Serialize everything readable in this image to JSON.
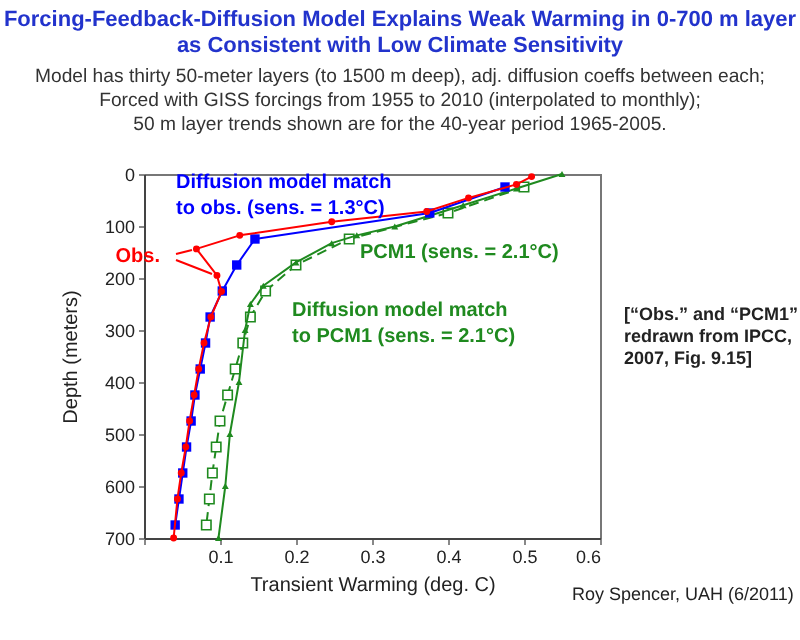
{
  "chart_data": {
    "type": "line",
    "title": "Forcing-Feedback-Diffusion Model Explains Weak Warming in 0-700 m layer\nas Consistent with Low Climate Sensitivity",
    "subtitle": "Model has thirty 50-meter layers (to 1500 m deep), adj. diffusion coeffs between each;\nForced with GISS forcings from 1955 to 2010 (interpolated to monthly);\n50 m layer trends shown are for the 40-year period 1965-2005.",
    "xlabel": "Transient Warming (deg. C)",
    "ylabel": "Depth (meters)",
    "xlim": [
      0,
      0.6
    ],
    "xticks": [
      {
        "value": 0,
        "label": null
      },
      0.1,
      0.2,
      0.3,
      0.4,
      0.5,
      0.6
    ],
    "ylim": [
      700,
      0
    ],
    "yticks": [
      0,
      100,
      200,
      300,
      400,
      500,
      600,
      700
    ],
    "series": [
      {
        "name": "Obs.",
        "color": "#ff0000",
        "marker": "circle",
        "line_style": "solid",
        "x": [
          0.51,
          0.49,
          0.427,
          0.372,
          0.247,
          0.126,
          0.069,
          0.096,
          0.102,
          0.088,
          0.079,
          0.072,
          0.066,
          0.06,
          0.055,
          0.049,
          0.044,
          0.039
        ],
        "values": [
          5,
          20,
          46,
          72,
          92,
          118,
          144,
          195,
          226,
          275,
          325,
          375,
          425,
          475,
          525,
          575,
          625,
          700
        ]
      },
      {
        "name": "Diffusion model match\nto obs. (sens. = 1.3°C)",
        "color": "#0000ff",
        "marker": "square",
        "line_style": "solid",
        "x": [
          0.475,
          0.376,
          0.146,
          0.122,
          0.103,
          0.087,
          0.081,
          0.074,
          0.067,
          0.062,
          0.056,
          0.051,
          0.046,
          0.041
        ],
        "values": [
          25,
          75,
          125,
          175,
          225,
          275,
          325,
          375,
          425,
          475,
          525,
          575,
          625,
          675
        ]
      },
      {
        "name": "PCM1 (sens. = 2.1°C)",
        "color": "#1f8a1f",
        "marker": "triangle",
        "line_style": "solid",
        "x": [
          0.55,
          0.49,
          0.42,
          0.33,
          0.28,
          0.247,
          0.2,
          0.157,
          0.14,
          0.133,
          0.125,
          0.113,
          0.107,
          0.098
        ],
        "values": [
          0,
          28,
          60,
          101,
          118,
          133,
          170,
          215,
          250,
          300,
          400,
          500,
          600,
          700
        ]
      },
      {
        "name": "Diffusion model match\nto PCM1 (sens. = 2.1°C)",
        "color": "#1f8a1f",
        "marker": "square",
        "line_style": "dashed",
        "x": [
          0.5,
          0.4,
          0.27,
          0.2,
          0.16,
          0.14,
          0.13,
          0.12,
          0.11,
          0.1,
          0.095,
          0.09,
          0.086,
          0.082
        ],
        "values": [
          25,
          75,
          125,
          175,
          225,
          275,
          325,
          375,
          425,
          475,
          525,
          575,
          625,
          675
        ]
      }
    ],
    "annotations": [
      "[“Obs.” and “PCM1”\nredrawn from IPCC,\n2007, Fig. 9.15]",
      "Roy Spencer, UAH (6/2011)"
    ]
  }
}
